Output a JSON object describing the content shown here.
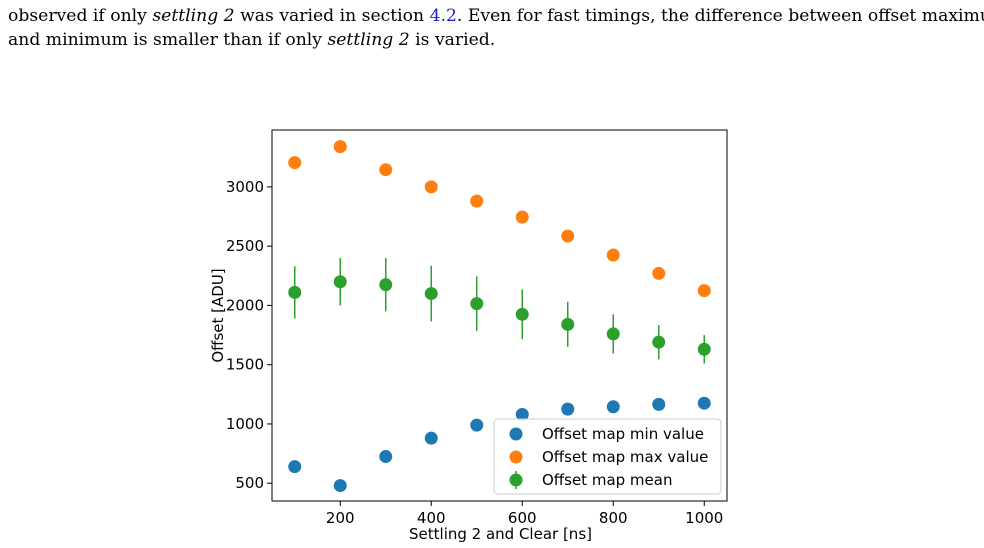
{
  "text": {
    "line1_a": "observed if only ",
    "line1_em1": "settling 2",
    "line1_b": " was varied in section ",
    "line1_ref": "4.2",
    "line1_c": ". Even for fast timings, the difference between offset maximum",
    "line2_a": "and minimum is smaller than if only ",
    "line2_em": "settling 2",
    "line2_b": " is varied."
  },
  "chart_data": {
    "type": "scatter",
    "title": "",
    "xlabel": "Settling 2 and Clear [ns]",
    "ylabel": "Offset [ADU]",
    "xlim": [
      50,
      1050
    ],
    "ylim": [
      350,
      3480
    ],
    "xticks": [
      200,
      400,
      600,
      800,
      1000
    ],
    "yticks": [
      500,
      1000,
      1500,
      2000,
      2500,
      3000
    ],
    "grid": false,
    "legend_position": "lower-right",
    "x": [
      100,
      200,
      300,
      400,
      500,
      600,
      700,
      800,
      900,
      1000
    ],
    "series": [
      {
        "name": "Offset map min value",
        "color": "#1f77b4",
        "values": [
          640,
          480,
          725,
          880,
          990,
          1080,
          1125,
          1145,
          1165,
          1175
        ]
      },
      {
        "name": "Offset map max value",
        "color": "#ff7f0e",
        "values": [
          3205,
          3340,
          3145,
          3000,
          2880,
          2745,
          2585,
          2425,
          2270,
          2125
        ]
      },
      {
        "name": "Offset map mean",
        "color": "#2ca02c",
        "values": [
          2110,
          2200,
          2175,
          2100,
          2015,
          1925,
          1840,
          1760,
          1690,
          1630
        ],
        "errors": [
          220,
          200,
          225,
          235,
          230,
          210,
          190,
          165,
          145,
          120
        ]
      }
    ]
  }
}
